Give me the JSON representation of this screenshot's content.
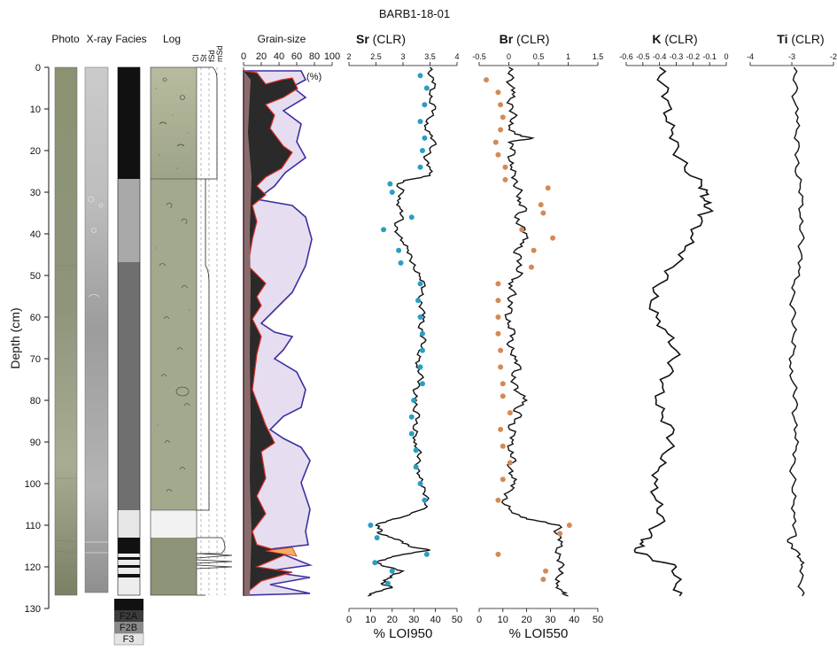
{
  "figure_title": "BARB1-18-01",
  "headers": {
    "photo": "Photo",
    "xray": "X-ray",
    "facies": "Facies",
    "log": "Log",
    "grain": "Grain-size",
    "sr_bold": "Sr",
    "br_bold": "Br",
    "k_bold": "K",
    "ti_bold": "Ti",
    "clr": "(CLR)"
  },
  "depth_label": "Depth (cm)",
  "depth_ticks": [
    "0",
    "10",
    "20",
    "30",
    "40",
    "50",
    "60",
    "70",
    "80",
    "90",
    "100",
    "110",
    "120",
    "130"
  ],
  "grain_ticks": [
    "0",
    "20",
    "40",
    "60",
    "80",
    "100"
  ],
  "grain_unit": "(%)",
  "log_scale": [
    "Cl",
    "St",
    "fSd",
    "mSd"
  ],
  "facies_legend": [
    "F1",
    "F2A",
    "F2B",
    "F3"
  ],
  "colors": {
    "F1": "#111111",
    "F2A": "#3c3c3c",
    "F2B": "#8a8a8a",
    "F3": "#e4e4e4",
    "sr_dot": "#2a9ec2",
    "br_dot": "#d38a55",
    "lavender": "#e6def0",
    "purple_line": "#3d2fa0",
    "red_line": "#e0302a",
    "log_fill": "#9fa68a"
  },
  "chart_data": [
    {
      "type": "line",
      "name": "Sr",
      "xlabel": "Sr (CLR)",
      "secondary_xlabel": "% LOI950",
      "xlim": [
        2,
        4
      ],
      "xticks": [
        "2",
        "2.5",
        "3",
        "3.5",
        "4"
      ],
      "secondary_xlim": [
        0,
        50
      ],
      "secondary_xticks": [
        "0",
        "10",
        "20",
        "30",
        "40",
        "50"
      ],
      "ylabel": "Depth (cm)",
      "ylim": [
        0,
        130
      ],
      "series": [
        {
          "y": [
            0,
            2,
            4,
            6,
            8,
            10,
            12,
            14,
            16,
            18,
            20,
            22,
            24,
            26,
            27,
            28,
            30,
            32,
            34,
            36,
            38,
            40,
            42,
            44,
            46,
            48,
            50,
            52,
            54,
            56,
            58,
            60,
            62,
            64,
            66,
            68,
            70,
            72,
            74,
            76,
            78,
            80,
            82,
            84,
            86,
            88,
            90,
            92,
            94,
            96,
            98,
            100,
            102,
            104,
            106,
            108,
            109,
            110,
            111,
            112,
            113,
            114,
            115,
            116,
            117,
            118,
            119,
            120,
            121,
            122,
            123,
            124,
            125,
            126,
            127
          ],
          "x": [
            3.5,
            3.5,
            3.6,
            3.5,
            3.5,
            3.6,
            3.5,
            3.4,
            3.5,
            3.6,
            3.5,
            3.4,
            3.5,
            3.5,
            3.1,
            2.9,
            3.0,
            2.9,
            2.95,
            3.0,
            2.85,
            2.9,
            3.0,
            3.1,
            3.15,
            3.2,
            3.3,
            3.4,
            3.35,
            3.3,
            3.35,
            3.4,
            3.3,
            3.35,
            3.4,
            3.3,
            3.3,
            3.25,
            3.35,
            3.3,
            3.2,
            3.25,
            3.2,
            3.3,
            3.2,
            3.25,
            3.2,
            3.3,
            3.3,
            3.25,
            3.3,
            3.35,
            3.4,
            3.45,
            3.4,
            3.0,
            2.7,
            2.5,
            2.6,
            2.55,
            2.8,
            3.0,
            3.1,
            3.5,
            3.0,
            2.7,
            2.5,
            2.7,
            3.0,
            2.8,
            2.7,
            2.6,
            2.8,
            2.5,
            2.35
          ]
        }
      ],
      "points_loi950": {
        "y": [
          2,
          5,
          9,
          13,
          17,
          20,
          24,
          28,
          30,
          36,
          39,
          44,
          47,
          52,
          56,
          60,
          64,
          68,
          72,
          76,
          80,
          84,
          88,
          92,
          96,
          100,
          104,
          110,
          113,
          117,
          119,
          121,
          124
        ],
        "x": [
          33,
          36,
          35,
          33,
          35,
          34,
          33,
          19,
          20,
          29,
          16,
          23,
          24,
          33,
          32,
          33,
          34,
          34,
          33,
          34,
          30,
          29,
          29,
          31,
          31,
          33,
          35,
          10,
          13,
          36,
          12,
          20,
          18
        ]
      }
    },
    {
      "type": "line",
      "name": "Br",
      "xlabel": "Br (CLR)",
      "secondary_xlabel": "% LOI550",
      "xlim": [
        -0.5,
        1.5
      ],
      "xticks": [
        "-0.5",
        "0",
        "0.5",
        "1",
        "1.5"
      ],
      "secondary_xlim": [
        0,
        50
      ],
      "secondary_xticks": [
        "0",
        "10",
        "20",
        "30",
        "40",
        "50"
      ],
      "ylabel": "Depth (cm)",
      "ylim": [
        0,
        130
      ],
      "series": [
        {
          "y": [
            0,
            2,
            4,
            6,
            8,
            10,
            12,
            14,
            16,
            17,
            18,
            20,
            22,
            24,
            26,
            28,
            30,
            32,
            34,
            36,
            38,
            40,
            42,
            44,
            46,
            48,
            50,
            52,
            54,
            56,
            58,
            60,
            62,
            64,
            66,
            68,
            70,
            72,
            74,
            76,
            78,
            80,
            82,
            84,
            86,
            88,
            90,
            92,
            94,
            96,
            98,
            100,
            102,
            104,
            106,
            108,
            109,
            110,
            112,
            114,
            116,
            118,
            120,
            122,
            124,
            126,
            127
          ],
          "x": [
            0.0,
            0.05,
            0.0,
            0.1,
            0.0,
            0.05,
            0.1,
            0.0,
            0.1,
            0.4,
            0.0,
            0.1,
            0.0,
            0.05,
            0.1,
            0.1,
            0.2,
            0.15,
            0.3,
            0.1,
            0.2,
            0.3,
            0.25,
            0.1,
            0.2,
            0.15,
            0.2,
            0.0,
            0.1,
            0.0,
            0.05,
            -0.05,
            0.0,
            0.1,
            0.0,
            0.05,
            0.1,
            0.2,
            0.05,
            0.1,
            0.15,
            0.3,
            0.1,
            0.2,
            0.0,
            0.1,
            0.05,
            0.0,
            0.1,
            0.0,
            0.05,
            0.1,
            0.0,
            -0.1,
            0.0,
            0.2,
            0.5,
            0.85,
            0.8,
            0.9,
            0.8,
            0.85,
            0.9,
            0.85,
            0.8,
            0.9,
            1.0
          ]
        }
      ],
      "points_loi550": {
        "y": [
          3,
          6,
          9,
          12,
          15,
          18,
          21,
          24,
          27,
          29,
          33,
          35,
          39,
          41,
          44,
          48,
          52,
          56,
          60,
          64,
          68,
          72,
          76,
          79,
          83,
          87,
          91,
          95,
          99,
          104,
          110,
          112,
          117,
          121,
          123
        ],
        "x": [
          3,
          8,
          9,
          10,
          9,
          7,
          8,
          11,
          11,
          29,
          26,
          27,
          18,
          31,
          23,
          22,
          8,
          8,
          8,
          8,
          9,
          9,
          10,
          10,
          13,
          9,
          10,
          13,
          10,
          8,
          38,
          34,
          8,
          28,
          27
        ]
      }
    },
    {
      "type": "line",
      "name": "K",
      "xlabel": "K (CLR)",
      "xlim": [
        -0.6,
        0
      ],
      "xticks": [
        "-0.6",
        "-0.5",
        "-0.4",
        "-0.3",
        "-0.2",
        "-0.1",
        "0"
      ],
      "ylabel": "Depth (cm)",
      "ylim": [
        0,
        130
      ],
      "series": [
        {
          "y": [
            0,
            4,
            8,
            12,
            16,
            20,
            24,
            28,
            30,
            32,
            34,
            36,
            40,
            44,
            48,
            52,
            56,
            60,
            64,
            68,
            72,
            76,
            80,
            84,
            88,
            92,
            96,
            100,
            104,
            108,
            112,
            114,
            116,
            118,
            120,
            124,
            127
          ],
          "x": [
            -0.4,
            -0.38,
            -0.35,
            -0.36,
            -0.32,
            -0.3,
            -0.25,
            -0.15,
            -0.12,
            -0.13,
            -0.1,
            -0.15,
            -0.2,
            -0.25,
            -0.32,
            -0.4,
            -0.45,
            -0.42,
            -0.35,
            -0.3,
            -0.33,
            -0.38,
            -0.42,
            -0.38,
            -0.32,
            -0.35,
            -0.4,
            -0.43,
            -0.42,
            -0.38,
            -0.45,
            -0.5,
            -0.55,
            -0.45,
            -0.3,
            -0.3,
            -0.28
          ]
        }
      ]
    },
    {
      "type": "line",
      "name": "Ti",
      "xlabel": "Ti (CLR)",
      "xlim": [
        -4,
        -2
      ],
      "xticks": [
        "-4",
        "-3",
        "-2"
      ],
      "ylabel": "Depth (cm)",
      "ylim": [
        0,
        130
      ],
      "series": [
        {
          "y": [
            0,
            4,
            8,
            12,
            16,
            20,
            24,
            28,
            32,
            36,
            40,
            44,
            48,
            52,
            56,
            60,
            64,
            68,
            72,
            76,
            80,
            84,
            88,
            92,
            96,
            100,
            104,
            108,
            112,
            114,
            116,
            118,
            120,
            124,
            127
          ],
          "x": [
            -2.95,
            -2.9,
            -2.95,
            -2.85,
            -2.9,
            -2.85,
            -2.9,
            -2.8,
            -2.75,
            -2.8,
            -2.75,
            -2.8,
            -2.8,
            -2.95,
            -3.0,
            -2.95,
            -2.95,
            -2.95,
            -3.05,
            -2.95,
            -2.9,
            -2.95,
            -2.9,
            -2.9,
            -3.0,
            -2.95,
            -2.95,
            -2.95,
            -2.9,
            -3.1,
            -2.9,
            -2.8,
            -2.75,
            -2.8,
            -2.75
          ]
        }
      ]
    }
  ]
}
